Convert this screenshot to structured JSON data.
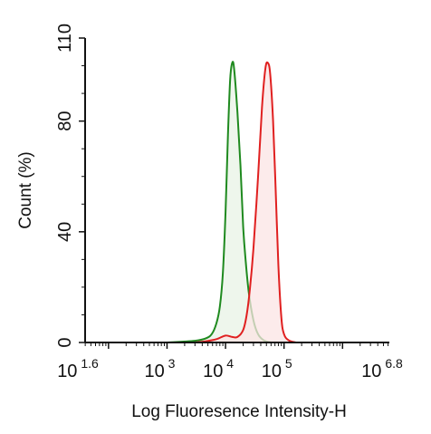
{
  "chart_data": {
    "type": "area",
    "xlabel": "Log Fluoresence Intensity-H",
    "ylabel": "Count  (%)",
    "xscale": "log",
    "xlim": [
      39.81,
      6309573
    ],
    "ylim": [
      0,
      110
    ],
    "x_ticks": [
      {
        "base": "10",
        "exp": "1.6"
      },
      {
        "base": "10",
        "exp": "3"
      },
      {
        "base": "10",
        "exp": "4"
      },
      {
        "base": "10",
        "exp": "5"
      },
      {
        "base": "10",
        "exp": "6.8"
      }
    ],
    "y_ticks": [
      "0",
      "40",
      "80",
      "110"
    ],
    "grid": false,
    "series": [
      {
        "color": "#1f8a1f",
        "fill": "#e8f3e6",
        "points": [
          [
            1000,
            0
          ],
          [
            1800,
            0.3
          ],
          [
            3000,
            0.6
          ],
          [
            4500,
            1.4
          ],
          [
            5800,
            3
          ],
          [
            7000,
            7
          ],
          [
            8000,
            13
          ],
          [
            9000,
            25
          ],
          [
            10000,
            47
          ],
          [
            11000,
            75
          ],
          [
            12000,
            95
          ],
          [
            13000,
            101
          ],
          [
            14000,
            99
          ],
          [
            16000,
            83
          ],
          [
            18000,
            64
          ],
          [
            20000,
            42
          ],
          [
            22000,
            30
          ],
          [
            25000,
            18
          ],
          [
            30000,
            8
          ],
          [
            36000,
            3
          ],
          [
            45000,
            0.8
          ],
          [
            60000,
            0
          ]
        ]
      },
      {
        "color": "#e02020",
        "fill": "#fbe4e4",
        "points": [
          [
            3000,
            0
          ],
          [
            4500,
            0.4
          ],
          [
            7000,
            1.2
          ],
          [
            10000,
            2.5
          ],
          [
            13000,
            2
          ],
          [
            16000,
            2
          ],
          [
            20000,
            4.5
          ],
          [
            23000,
            10
          ],
          [
            26000,
            19
          ],
          [
            30000,
            34
          ],
          [
            36000,
            60
          ],
          [
            42000,
            85
          ],
          [
            48000,
            99
          ],
          [
            53000,
            101
          ],
          [
            58000,
            97
          ],
          [
            65000,
            80
          ],
          [
            72000,
            55
          ],
          [
            80000,
            28
          ],
          [
            90000,
            9
          ],
          [
            100000,
            3
          ],
          [
            120000,
            0.8
          ],
          [
            160000,
            0
          ]
        ]
      }
    ]
  }
}
